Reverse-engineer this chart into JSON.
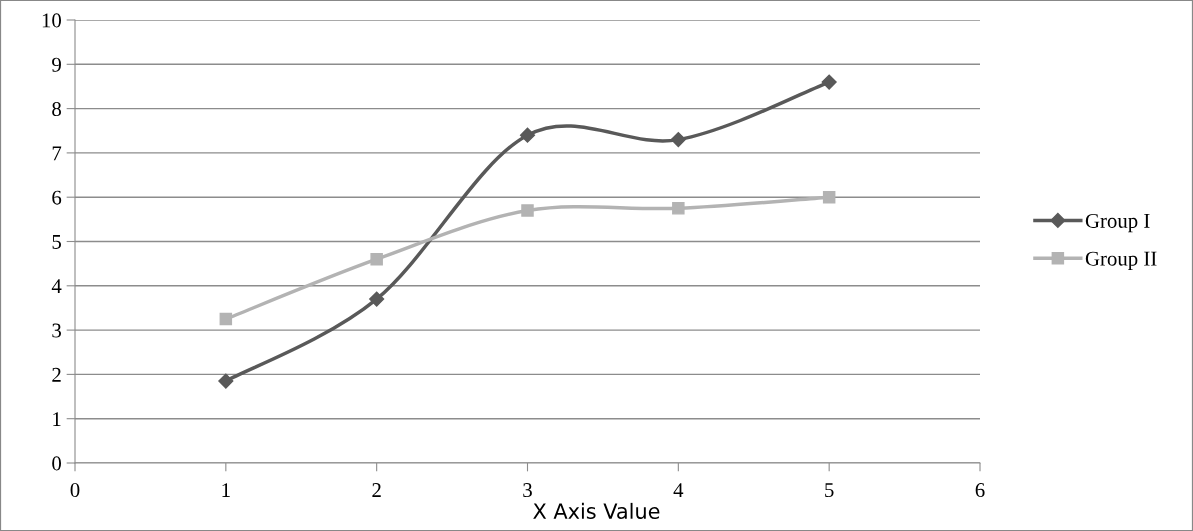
{
  "chart_data": {
    "type": "line",
    "xlabel": "X Axis Value",
    "x": [
      1,
      2,
      3,
      4,
      5
    ],
    "series": [
      {
        "name": "Group I",
        "color": "#595959",
        "marker": "diamond",
        "values": [
          1.85,
          3.7,
          7.4,
          7.3,
          8.6
        ]
      },
      {
        "name": "Group II",
        "color": "#b3b3b3",
        "marker": "square",
        "values": [
          3.25,
          4.6,
          5.7,
          5.75,
          6.0
        ]
      }
    ],
    "xlim": [
      0,
      6
    ],
    "xticks": [
      0,
      1,
      2,
      3,
      4,
      5,
      6
    ],
    "ylim": [
      0,
      10
    ],
    "yticks": [
      0,
      1,
      2,
      3,
      4,
      5,
      6,
      7,
      8,
      9,
      10
    ],
    "grid": "y",
    "legend": "right",
    "line_style": "solid"
  }
}
